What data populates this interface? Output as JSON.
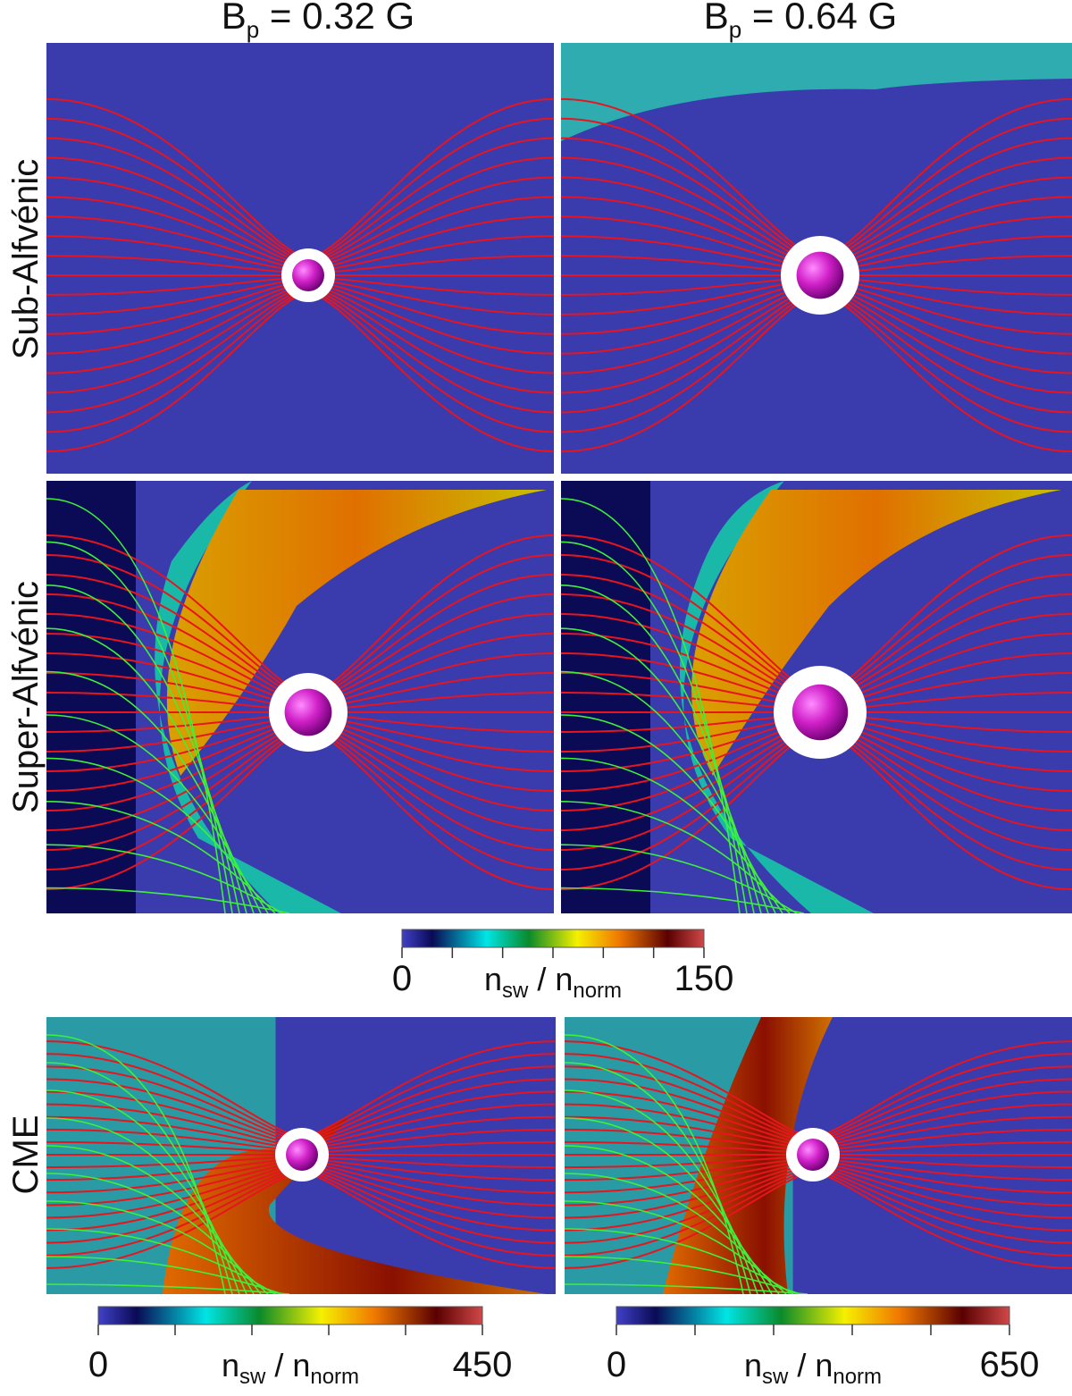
{
  "column_titles": [
    {
      "base": "B",
      "sub": "p",
      "rest": " = 0.32 G"
    },
    {
      "base": "B",
      "sub": "p",
      "rest": " = 0.64 G"
    }
  ],
  "row_labels": [
    "Sub-Alfvénic",
    "Super-Alfvénic",
    "CME"
  ],
  "colorbars": [
    {
      "min": 0,
      "max": 150,
      "ticks": [
        0,
        25,
        50,
        75,
        100,
        125,
        150
      ],
      "label": {
        "n": "n",
        "sub1": "sw",
        "mid": " / ",
        "n2": "n",
        "sub2": "norm"
      }
    },
    {
      "min": 0,
      "max": 450,
      "ticks": [
        0,
        90,
        180,
        270,
        360,
        450
      ],
      "label": {
        "n": "n",
        "sub1": "sw",
        "mid": " / ",
        "n2": "n",
        "sub2": "norm"
      }
    },
    {
      "min": 0,
      "max": 650,
      "ticks": [
        0,
        130,
        260,
        390,
        520,
        650
      ],
      "label": {
        "n": "n",
        "sub1": "sw",
        "mid": " / ",
        "n2": "n",
        "sub2": "norm"
      }
    }
  ]
}
